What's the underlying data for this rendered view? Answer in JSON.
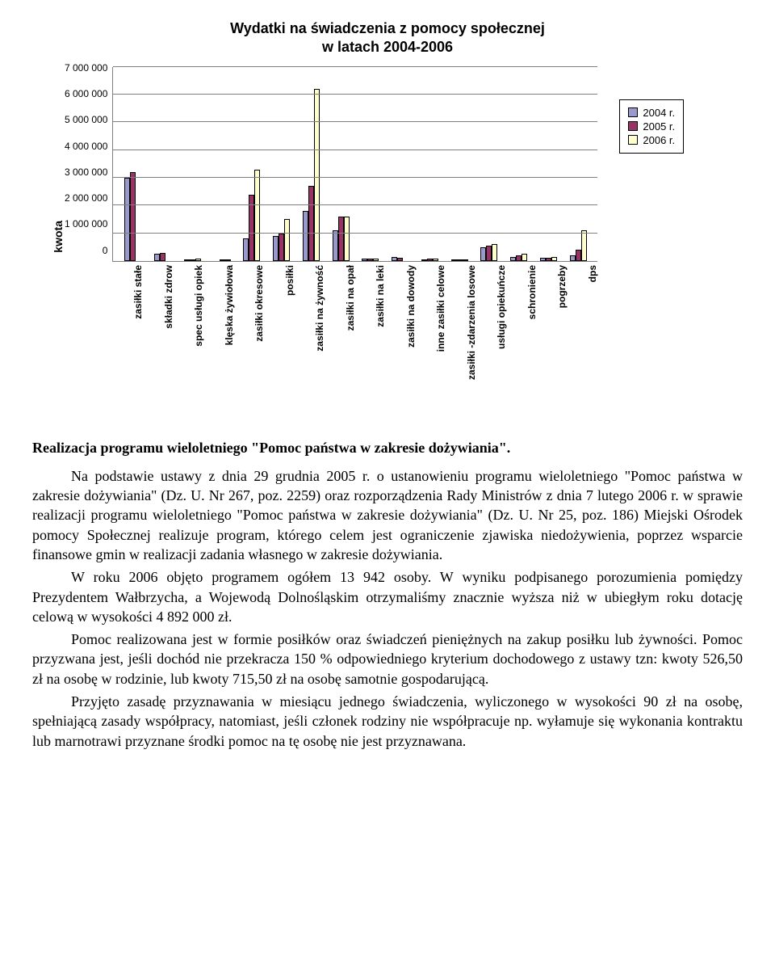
{
  "chart": {
    "type": "bar",
    "title_line1": "Wydatki na świadczenia z pomocy społecznej",
    "title_line2": "w latach 2004-2006",
    "ylabel": "kwota",
    "ymax": 7000000,
    "ystep": 1000000,
    "yticks": [
      "7 000 000",
      "6 000 000",
      "5 000 000",
      "4 000 000",
      "3 000 000",
      "2 000 000",
      "1 000 000",
      "0"
    ],
    "grid_color": "#808080",
    "background": "#ffffff",
    "series": [
      {
        "label": "2004 r.",
        "color": "#9999cc"
      },
      {
        "label": "2005 r.",
        "color": "#993366"
      },
      {
        "label": "2006 r.",
        "color": "#ffffcc"
      }
    ],
    "categories": [
      {
        "label": "zasiłki stałe",
        "values": [
          3000000,
          3200000,
          0
        ]
      },
      {
        "label": "składki zdrow",
        "values": [
          250000,
          280000,
          0
        ]
      },
      {
        "label": "spec usługi opiek",
        "values": [
          50000,
          60000,
          80000
        ]
      },
      {
        "label": "klęska żywiołowa",
        "values": [
          0,
          40000,
          40000
        ]
      },
      {
        "label": "zasiłki okresowe",
        "values": [
          800000,
          2400000,
          3300000
        ]
      },
      {
        "label": "posiłki",
        "values": [
          900000,
          1000000,
          1500000
        ]
      },
      {
        "label": "zasiłki na żywność",
        "values": [
          1800000,
          2700000,
          6200000
        ]
      },
      {
        "label": "zasiłki na opał",
        "values": [
          1100000,
          1600000,
          1600000
        ]
      },
      {
        "label": "zasiłki na leki",
        "values": [
          80000,
          90000,
          90000
        ]
      },
      {
        "label": "zasiłki na dowody",
        "values": [
          150000,
          100000,
          0
        ]
      },
      {
        "label": "inne zasiłki celowe",
        "values": [
          60000,
          70000,
          80000
        ]
      },
      {
        "label": "zasiłki -zdarzenia losowe",
        "values": [
          40000,
          50000,
          60000
        ]
      },
      {
        "label": "usługi opiekuńcze",
        "values": [
          500000,
          550000,
          600000
        ]
      },
      {
        "label": "schronienie",
        "values": [
          150000,
          200000,
          250000
        ]
      },
      {
        "label": "pogrzeby",
        "values": [
          100000,
          120000,
          130000
        ]
      },
      {
        "label": "dps",
        "values": [
          200000,
          400000,
          1100000
        ]
      }
    ]
  },
  "section_heading": "Realizacja programu wieloletniego \"Pomoc państwa w zakresie dożywiania\".",
  "paragraphs": [
    "Na podstawie ustawy z dnia 29 grudnia 2005 r. o ustanowieniu programu wieloletniego \"Pomoc państwa w zakresie dożywiania\" (Dz. U. Nr 267, poz. 2259) oraz rozporządzenia Rady Ministrów z dnia 7 lutego 2006 r. w sprawie realizacji programu wieloletniego \"Pomoc państwa w zakresie dożywiania\" (Dz. U. Nr 25, poz. 186) Miejski Ośrodek pomocy Społecznej realizuje program, którego celem jest ograniczenie zjawiska niedożywienia, poprzez wsparcie finansowe gmin w realizacji zadania własnego w zakresie dożywiania.",
    "W roku 2006 objęto programem ogółem 13 942 osoby. W wyniku podpisanego porozumienia pomiędzy Prezydentem Wałbrzycha, a Wojewodą Dolnośląskim otrzymaliśmy znacznie wyższa niż w ubiegłym roku dotację celową w wysokości 4 892 000 zł.",
    "Pomoc realizowana jest w formie posiłków oraz świadczeń pieniężnych na zakup posiłku lub żywności. Pomoc przyzwana jest, jeśli dochód nie przekracza 150 % odpowiedniego kryterium dochodowego z ustawy tzn: kwoty 526,50 zł na osobę w rodzinie, lub kwoty 715,50 zł na osobę samotnie gospodarującą.",
    "Przyjęto zasadę przyznawania w miesiącu jednego świadczenia, wyliczonego w wysokości 90 zł na osobę, spełniającą zasady współpracy, natomiast, jeśli członek rodziny nie współpracuje np. wyłamuje się wykonania kontraktu lub marnotrawi przyznane środki pomoc na tę osobę nie jest przyznawana."
  ]
}
